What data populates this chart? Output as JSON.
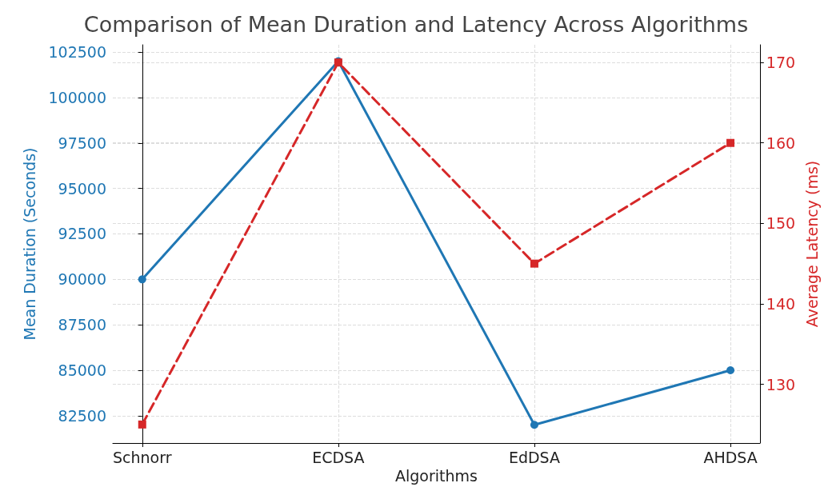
{
  "chart_data": {
    "type": "line",
    "title": "Comparison of Mean Duration and Latency Across Algorithms",
    "xlabel": "Algorithms",
    "ylabel": "Mean Duration (Seconds)",
    "y2label": "Average Latency (ms)",
    "categories": [
      "Schnorr",
      "ECDSA",
      "EdDSA",
      "AHDSA"
    ],
    "series": [
      {
        "color": "#1f77b4",
        "values": [
          90000,
          102000,
          82000,
          85000
        ],
        "marker": "circle",
        "line_style": "solid"
      },
      {
        "color": "#d62728",
        "values": [
          125,
          170,
          145,
          160
        ],
        "axis": "y2",
        "marker": "square",
        "line_style": "dashed"
      }
    ],
    "ylim": [
      81000,
      102900
    ],
    "yticks": [
      82500,
      85000,
      87500,
      90000,
      92500,
      95000,
      97500,
      100000,
      102500
    ],
    "y2lim": [
      122.7,
      172.2
    ],
    "y2ticks": [
      130,
      140,
      150,
      160,
      170
    ],
    "grid": true
  }
}
